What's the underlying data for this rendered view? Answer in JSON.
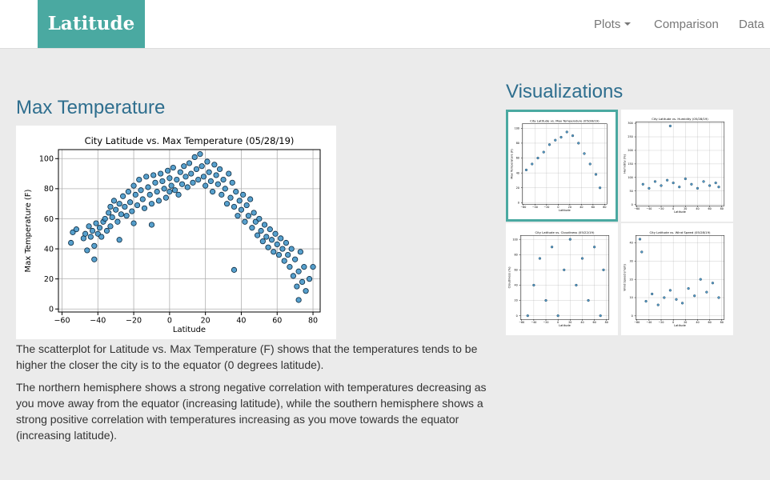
{
  "navbar": {
    "brand": "Latitude",
    "items": [
      {
        "label": "Plots",
        "dropdown": true
      },
      {
        "label": "Comparison",
        "dropdown": false
      },
      {
        "label": "Data",
        "dropdown": false
      }
    ]
  },
  "main": {
    "title": "Max Temperature",
    "paragraphs": [
      "The scatterplot for Latitude vs. Max Temperature (F) shows that the temperatures tends to be higher the closer the city is to the equator (0 degrees latitude).",
      "The northern hemisphere shows a strong negative correlation with temperatures decreasing as you move away from the equator (increasing latitude), while the southern hemisphere shows a strong positive correlation with temperatures increasing as you move towards the equator (increasing latitude)."
    ]
  },
  "sidebar": {
    "title": "Visualizations",
    "thumbnails": [
      {
        "title": "City Latitude vs. Max Temperature (05/28/19)",
        "ylabel": "Max Temperature (F)",
        "xlabel": "Latitude",
        "active": true
      },
      {
        "title": "City Latitude vs. Humidity (05/28/19)",
        "ylabel": "Humidity (%)",
        "xlabel": "Latitude",
        "active": false
      },
      {
        "title": "City Latitude vs. Cloudiness (05/22/19)",
        "ylabel": "Cloudiness (%)",
        "xlabel": "Latitude",
        "active": false
      },
      {
        "title": "City Latitude vs. Wind Speed (05/28/19)",
        "ylabel": "Wind Speed (mph)",
        "xlabel": "Latitude",
        "active": false
      }
    ]
  },
  "colors": {
    "brand": "#4aa9a1",
    "heading": "#2e6e8e",
    "point_fill": "#3a8fc4",
    "point_edge": "#0b2a40"
  },
  "chart_data": [
    {
      "type": "scatter",
      "title": "City Latitude vs. Max Temperature (05/28/19)",
      "xlabel": "Latitude",
      "ylabel": "Max Temperature (F)",
      "xlim": [
        -62,
        84
      ],
      "ylim": [
        -2,
        106
      ],
      "xticks": [
        -60,
        -40,
        -20,
        0,
        20,
        40,
        60,
        80
      ],
      "yticks": [
        0,
        20,
        40,
        60,
        80,
        100
      ],
      "grid": true,
      "points": [
        [
          -55,
          44
        ],
        [
          -54,
          51
        ],
        [
          -52,
          53
        ],
        [
          -48,
          47
        ],
        [
          -47,
          50
        ],
        [
          -46,
          39
        ],
        [
          -45,
          55
        ],
        [
          -44,
          48
        ],
        [
          -43,
          52
        ],
        [
          -42,
          42
        ],
        [
          -42,
          33
        ],
        [
          -41,
          57
        ],
        [
          -40,
          50
        ],
        [
          -39,
          54
        ],
        [
          -38,
          48
        ],
        [
          -37,
          58
        ],
        [
          -36,
          60
        ],
        [
          -35,
          52
        ],
        [
          -34,
          64
        ],
        [
          -33,
          55
        ],
        [
          -33,
          68
        ],
        [
          -32,
          61
        ],
        [
          -31,
          72
        ],
        [
          -30,
          66
        ],
        [
          -29,
          58
        ],
        [
          -28,
          70
        ],
        [
          -27,
          63
        ],
        [
          -26,
          75
        ],
        [
          -25,
          68
        ],
        [
          -24,
          62
        ],
        [
          -23,
          78
        ],
        [
          -22,
          71
        ],
        [
          -21,
          65
        ],
        [
          -20,
          82
        ],
        [
          -20,
          57
        ],
        [
          -19,
          76
        ],
        [
          -18,
          69
        ],
        [
          -17,
          86
        ],
        [
          -16,
          79
        ],
        [
          -15,
          73
        ],
        [
          -14,
          67
        ],
        [
          -13,
          88
        ],
        [
          -12,
          81
        ],
        [
          -11,
          76
        ],
        [
          -10,
          70
        ],
        [
          -9,
          89
        ],
        [
          -8,
          84
        ],
        [
          -7,
          78
        ],
        [
          -6,
          72
        ],
        [
          -5,
          90
        ],
        [
          -4,
          85
        ],
        [
          -3,
          80
        ],
        [
          -2,
          74
        ],
        [
          -1,
          92
        ],
        [
          0,
          87
        ],
        [
          0,
          78
        ],
        [
          1,
          82
        ],
        [
          2,
          94
        ],
        [
          3,
          79
        ],
        [
          4,
          86
        ],
        [
          5,
          76
        ],
        [
          6,
          91
        ],
        [
          7,
          83
        ],
        [
          8,
          95
        ],
        [
          9,
          88
        ],
        [
          10,
          81
        ],
        [
          11,
          97
        ],
        [
          12,
          90
        ],
        [
          13,
          84
        ],
        [
          14,
          101
        ],
        [
          15,
          93
        ],
        [
          16,
          86
        ],
        [
          17,
          103
        ],
        [
          18,
          95
        ],
        [
          19,
          88
        ],
        [
          20,
          82
        ],
        [
          21,
          98
        ],
        [
          22,
          91
        ],
        [
          23,
          85
        ],
        [
          24,
          78
        ],
        [
          25,
          96
        ],
        [
          26,
          89
        ],
        [
          27,
          83
        ],
        [
          28,
          93
        ],
        [
          29,
          76
        ],
        [
          30,
          86
        ],
        [
          31,
          80
        ],
        [
          32,
          70
        ],
        [
          33,
          90
        ],
        [
          34,
          74
        ],
        [
          35,
          84
        ],
        [
          36,
          68
        ],
        [
          37,
          78
        ],
        [
          38,
          62
        ],
        [
          39,
          72
        ],
        [
          40,
          66
        ],
        [
          41,
          76
        ],
        [
          42,
          58
        ],
        [
          43,
          69
        ],
        [
          44,
          62
        ],
        [
          45,
          73
        ],
        [
          46,
          54
        ],
        [
          47,
          64
        ],
        [
          48,
          58
        ],
        [
          49,
          49
        ],
        [
          50,
          60
        ],
        [
          51,
          52
        ],
        [
          52,
          45
        ],
        [
          53,
          56
        ],
        [
          54,
          48
        ],
        [
          55,
          41
        ],
        [
          56,
          53
        ],
        [
          57,
          46
        ],
        [
          58,
          38
        ],
        [
          59,
          50
        ],
        [
          60,
          43
        ],
        [
          61,
          36
        ],
        [
          62,
          47
        ],
        [
          63,
          40
        ],
        [
          64,
          32
        ],
        [
          65,
          44
        ],
        [
          66,
          36
        ],
        [
          67,
          28
        ],
        [
          68,
          40
        ],
        [
          69,
          22
        ],
        [
          70,
          33
        ],
        [
          71,
          15
        ],
        [
          72,
          25
        ],
        [
          72,
          6
        ],
        [
          73,
          38
        ],
        [
          74,
          18
        ],
        [
          75,
          28
        ],
        [
          76,
          12
        ],
        [
          78,
          20
        ],
        [
          80,
          28
        ],
        [
          36,
          26
        ],
        [
          -10,
          56
        ],
        [
          -28,
          46
        ]
      ]
    },
    {
      "type": "scatter",
      "title": "City Latitude vs. Max Temperature (05/28/19)",
      "xlabel": "Latitude",
      "ylabel": "Max Temperature (F)",
      "xlim": [
        -62,
        84
      ],
      "ylim": [
        -2,
        106
      ],
      "xticks": [
        -60,
        -40,
        -20,
        0,
        20,
        40,
        60,
        80
      ],
      "yticks": [
        0,
        20,
        40,
        60,
        80,
        100
      ],
      "grid": true,
      "points": [
        [
          -55,
          44
        ],
        [
          -45,
          52
        ],
        [
          -35,
          60
        ],
        [
          -25,
          68
        ],
        [
          -15,
          78
        ],
        [
          -5,
          84
        ],
        [
          5,
          88
        ],
        [
          15,
          95
        ],
        [
          25,
          90
        ],
        [
          35,
          80
        ],
        [
          45,
          66
        ],
        [
          55,
          52
        ],
        [
          65,
          38
        ],
        [
          72,
          20
        ]
      ]
    },
    {
      "type": "scatter",
      "title": "City Latitude vs. Humidity (05/28/19)",
      "xlabel": "Latitude",
      "ylabel": "Humidity (%)",
      "xlim": [
        -62,
        84
      ],
      "ylim": [
        -5,
        305
      ],
      "xticks": [
        -60,
        -40,
        -20,
        0,
        20,
        40,
        60,
        80
      ],
      "yticks": [
        0,
        50,
        100,
        150,
        200,
        250,
        300
      ],
      "grid": true,
      "points": [
        [
          -5,
          290
        ],
        [
          -50,
          75
        ],
        [
          -40,
          60
        ],
        [
          -30,
          85
        ],
        [
          -20,
          70
        ],
        [
          -10,
          90
        ],
        [
          0,
          80
        ],
        [
          10,
          65
        ],
        [
          20,
          95
        ],
        [
          30,
          75
        ],
        [
          40,
          60
        ],
        [
          50,
          85
        ],
        [
          60,
          70
        ],
        [
          70,
          80
        ],
        [
          75,
          65
        ]
      ]
    },
    {
      "type": "scatter",
      "title": "City Latitude vs. Cloudiness (05/22/19)",
      "xlabel": "Latitude",
      "ylabel": "Cloudiness (%)",
      "xlim": [
        -62,
        84
      ],
      "ylim": [
        -5,
        105
      ],
      "xticks": [
        -60,
        -40,
        -20,
        0,
        20,
        40,
        60,
        80
      ],
      "yticks": [
        0,
        20,
        40,
        60,
        80,
        100
      ],
      "grid": true,
      "points": [
        [
          -50,
          0
        ],
        [
          -40,
          40
        ],
        [
          -30,
          75
        ],
        [
          -20,
          20
        ],
        [
          -10,
          90
        ],
        [
          0,
          0
        ],
        [
          10,
          60
        ],
        [
          20,
          100
        ],
        [
          30,
          40
        ],
        [
          40,
          75
        ],
        [
          50,
          20
        ],
        [
          60,
          90
        ],
        [
          70,
          0
        ],
        [
          75,
          60
        ]
      ]
    },
    {
      "type": "scatter",
      "title": "City Latitude vs. Wind Speed (05/28/19)",
      "xlabel": "Latitude",
      "ylabel": "Wind Speed (mph)",
      "xlim": [
        -62,
        84
      ],
      "ylim": [
        -2,
        44
      ],
      "xticks": [
        -60,
        -40,
        -20,
        0,
        20,
        40,
        60,
        80
      ],
      "yticks": [
        0,
        10,
        20,
        30,
        40
      ],
      "grid": true,
      "points": [
        [
          -55,
          42
        ],
        [
          -52,
          35
        ],
        [
          -45,
          8
        ],
        [
          -35,
          12
        ],
        [
          -25,
          6
        ],
        [
          -15,
          10
        ],
        [
          -5,
          14
        ],
        [
          5,
          9
        ],
        [
          15,
          7
        ],
        [
          25,
          15
        ],
        [
          35,
          11
        ],
        [
          45,
          20
        ],
        [
          55,
          13
        ],
        [
          65,
          18
        ],
        [
          75,
          10
        ]
      ]
    }
  ]
}
